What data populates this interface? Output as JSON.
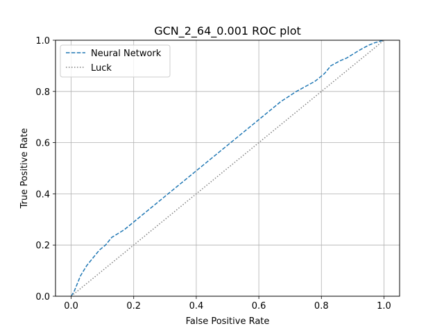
{
  "chart_data": {
    "type": "line",
    "title": "GCN_2_64_0.001 ROC plot",
    "xlabel": "False Positive Rate",
    "ylabel": "True Positive Rate",
    "xlim": [
      -0.05,
      1.05
    ],
    "ylim": [
      0.0,
      1.0
    ],
    "xticks": [
      0.0,
      0.2,
      0.4,
      0.6,
      0.8,
      1.0
    ],
    "xtick_labels": [
      "0.0",
      "0.2",
      "0.4",
      "0.6",
      "0.8",
      "1.0"
    ],
    "yticks": [
      0.0,
      0.2,
      0.4,
      0.6,
      0.8,
      1.0
    ],
    "ytick_labels": [
      "0.0",
      "0.2",
      "0.4",
      "0.6",
      "0.8",
      "1.0"
    ],
    "grid": true,
    "legend_position": "top-left",
    "series": [
      {
        "name": "Neural Network",
        "style": "dashed",
        "color": "#1f77b4",
        "x": [
          0.0,
          0.01,
          0.02,
          0.03,
          0.05,
          0.07,
          0.09,
          0.11,
          0.13,
          0.17,
          0.2,
          0.3,
          0.4,
          0.5,
          0.6,
          0.67,
          0.72,
          0.78,
          0.81,
          0.83,
          0.86,
          0.88,
          0.92,
          0.95,
          0.97,
          1.0
        ],
        "y": [
          0.0,
          0.02,
          0.05,
          0.08,
          0.12,
          0.15,
          0.18,
          0.2,
          0.23,
          0.26,
          0.29,
          0.39,
          0.49,
          0.59,
          0.69,
          0.76,
          0.8,
          0.84,
          0.87,
          0.9,
          0.92,
          0.93,
          0.96,
          0.98,
          0.99,
          1.0
        ]
      },
      {
        "name": "Luck",
        "style": "dotted",
        "color": "#7f7f7f",
        "x": [
          0.0,
          1.0
        ],
        "y": [
          0.0,
          1.0
        ]
      }
    ]
  }
}
